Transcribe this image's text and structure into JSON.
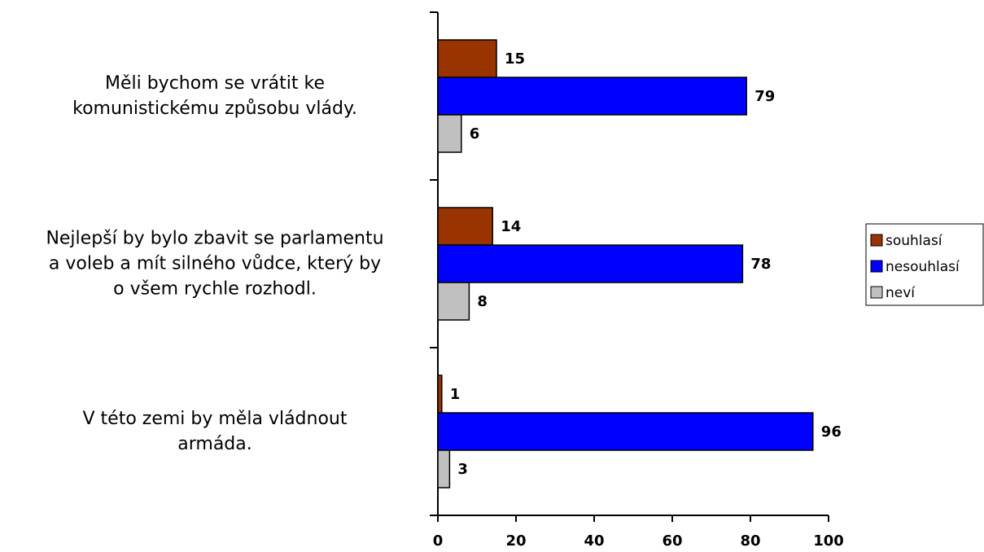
{
  "chart_data": {
    "type": "hbar",
    "categories": [
      "Měli bychom se vrátit ke\nkomunistickému způsobu vlády.",
      "Nejlepší by bylo zbavit se parlamentu\na voleb a mít silného vůdce, který by\no všem rychle rozhodl.",
      "V této zemi by měla vládnout\narmáda."
    ],
    "series": [
      {
        "name": "souhlasí",
        "color": "#993300",
        "values": [
          15,
          14,
          1
        ]
      },
      {
        "name": "nesouhlasí",
        "color": "#0000ff",
        "values": [
          79,
          78,
          96
        ]
      },
      {
        "name": "neví",
        "color": "#c0c0c0",
        "values": [
          6,
          8,
          3
        ]
      }
    ],
    "xlim": [
      0,
      100
    ],
    "xticks": [
      0,
      20,
      40,
      60,
      80,
      100
    ],
    "legend": "right"
  }
}
